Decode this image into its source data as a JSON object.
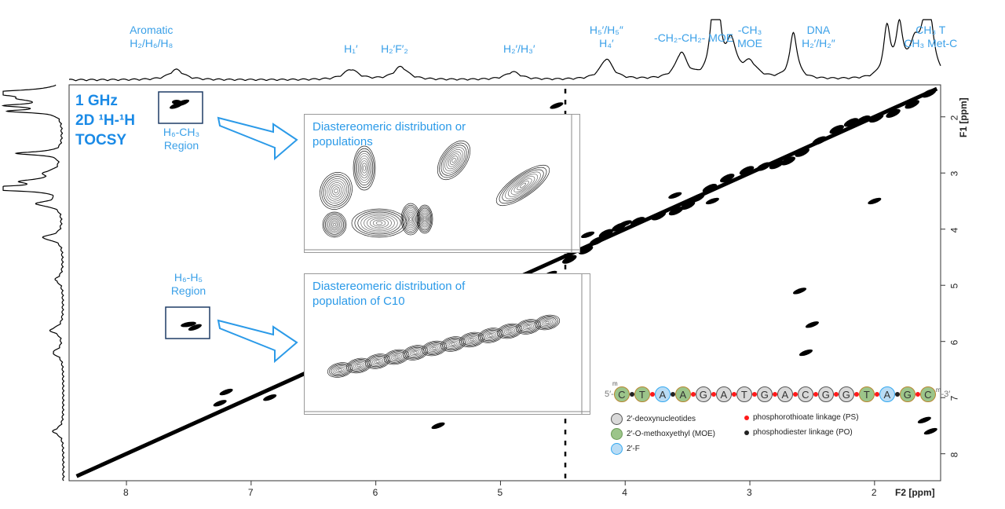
{
  "title_lines": [
    "1 GHz",
    "2D ¹H-¹H",
    "TOCSY"
  ],
  "top_labels": [
    {
      "text": "Aromatic\nH₂/H₆/H₈",
      "ppm": 7.8
    },
    {
      "text": "H₁′",
      "ppm": 6.2
    },
    {
      "text": "H₂′F′₂",
      "ppm": 5.85
    },
    {
      "text": "H₂′/H₃′",
      "ppm": 4.85
    },
    {
      "text": "H₅′/H₅″\nH₄′",
      "ppm": 4.15
    },
    {
      "text": "-CH₂-CH₂- MOE",
      "ppm": 3.45
    },
    {
      "text": "-CH₃\nMOE",
      "ppm": 3.0
    },
    {
      "text": "DNA\nH₂′/H₂″",
      "ppm": 2.45
    },
    {
      "text": "CH₃ T\nCH₃ Met-C",
      "ppm": 1.55
    }
  ],
  "region_labels": {
    "h6ch3": "H₆-CH₃\nRegion",
    "h6h5": "H₆-H₅\nRegion"
  },
  "insets": [
    {
      "title": "Diastereomeric distribution or\npopulations"
    },
    {
      "title": "Diastereomeric distribution of\npopulation of C10"
    }
  ],
  "sequence": {
    "five_prime": "5′-",
    "three_prime": "-3′",
    "mod_mark": "m",
    "bases": [
      "C",
      "T",
      "A",
      "A",
      "G",
      "A",
      "T",
      "G",
      "A",
      "C",
      "G",
      "G",
      "T",
      "A",
      "G",
      "C"
    ],
    "types": [
      "MOE",
      "MOE",
      "F",
      "MOE",
      "DNA",
      "DNA",
      "DNA",
      "DNA",
      "DNA",
      "DNA",
      "DNA",
      "DNA",
      "MOE",
      "F",
      "MOE",
      "MOE"
    ],
    "linkages": [
      "PO",
      "PS",
      "PO",
      "PS",
      "PS",
      "PS",
      "PS",
      "PS",
      "PS",
      "PS",
      "PS",
      "PS",
      "PS",
      "PO",
      "PS",
      "PO"
    ]
  },
  "legend": {
    "dna": "2′-deoxynucleotides",
    "moe": "2′-O-methoxyethyl (MOE)",
    "f": "2′-F",
    "ps": "phosphorothioate linkage (PS)",
    "po": "phosphodiester linkage (PO)"
  },
  "colors": {
    "accent": "#3aa0e8",
    "ps": "#ff1a1a",
    "po": "#222222",
    "dna": "#d9d9d9",
    "moe": "#9cc58a",
    "f": "#b9dcf5"
  },
  "chart_data": {
    "type": "heatmap",
    "subtype": "2D NMR contour (TOCSY)",
    "xlabel": "F2 [ppm]",
    "ylabel": "F1 [ppm]",
    "xlim": [
      8.46,
      1.47
    ],
    "ylim": [
      1.43,
      8.48
    ],
    "x_ticks": [
      8,
      7,
      6,
      5,
      4,
      3,
      2
    ],
    "y_ticks": [
      2,
      3,
      4,
      5,
      6,
      7,
      8
    ],
    "cross_peaks": [
      [
        7.55,
        1.75
      ],
      [
        7.6,
        1.8
      ],
      [
        7.45,
        5.75
      ],
      [
        5.5,
        7.5
      ],
      [
        4.6,
        4.8
      ],
      [
        4.3,
        4.1
      ],
      [
        4.0,
        3.9
      ],
      [
        3.6,
        3.4
      ],
      [
        3.3,
        3.5
      ],
      [
        2.6,
        5.1
      ],
      [
        2.55,
        6.2
      ],
      [
        2.5,
        5.7
      ],
      [
        2.0,
        3.5
      ],
      [
        1.6,
        7.4
      ],
      [
        1.55,
        7.6
      ],
      [
        4.55,
        1.8
      ],
      [
        6.85,
        7.0
      ],
      [
        7.2,
        6.9
      ],
      [
        7.25,
        7.1
      ]
    ],
    "projection_peaks": [
      [
        7.6,
        0.2
      ],
      [
        6.2,
        0.2
      ],
      [
        5.8,
        0.25
      ],
      [
        4.9,
        0.15
      ],
      [
        4.15,
        0.4
      ],
      [
        3.55,
        0.5
      ],
      [
        3.3,
        1.0
      ],
      [
        3.25,
        1.0
      ],
      [
        3.15,
        0.7
      ],
      [
        3.0,
        0.3
      ],
      [
        2.65,
        0.9
      ],
      [
        1.9,
        0.95
      ],
      [
        1.8,
        0.95
      ],
      [
        1.6,
        0.8
      ],
      [
        1.55,
        0.85
      ],
      [
        1.68,
        0.6
      ]
    ]
  }
}
